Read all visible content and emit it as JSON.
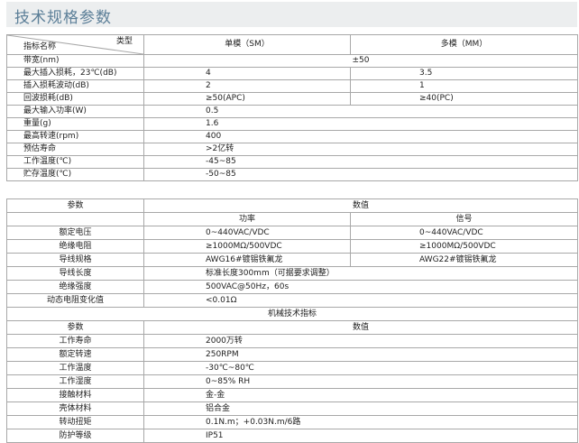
{
  "title": "技术规格参数",
  "optical": {
    "header": {
      "row_label": "指标名称",
      "col_label": "类型",
      "sm": "单模（SM）",
      "mm": "多模（MM）"
    },
    "bandwidth": {
      "label": "带宽(nm)",
      "value": "±50"
    },
    "rows_split": [
      {
        "label": "最大插入损耗，23℃(dB)",
        "sm": "4",
        "mm": "3.5"
      },
      {
        "label": "插入损耗波动(dB)",
        "sm": "2",
        "mm": "1"
      },
      {
        "label": "回波损耗(dB)",
        "sm": "≥50(APC)",
        "mm": "≥40(PC)"
      }
    ],
    "rows_single": [
      {
        "label": "最大输入功率(W)",
        "value": "0.5"
      },
      {
        "label": "重量(g)",
        "value": "1.6"
      },
      {
        "label": "最高转速(rpm)",
        "value": "400"
      },
      {
        "label": "预估寿命",
        "value": ">2亿转"
      },
      {
        "label": "工作温度(℃)",
        "value": "-45~85"
      },
      {
        "label": "贮存温度(℃)",
        "value": "-50~85"
      }
    ]
  },
  "electrical": {
    "header": {
      "param": "参数",
      "value": "数值",
      "power": "功率",
      "signal": "信号"
    },
    "rows_split": [
      {
        "label": "额定电压",
        "power": "0~440VAC/VDC",
        "signal": "0~440VAC/VDC"
      },
      {
        "label": "绝缘电阻",
        "power": "≥1000MΩ/500VDC",
        "signal": "≥1000MΩ/500VDC"
      },
      {
        "label": "导线规格",
        "power": "AWG16#镀锡铁氟龙",
        "signal": "AWG22#镀锡铁氟龙"
      }
    ],
    "rows_single": [
      {
        "label": "导线长度",
        "value": "标准长度300mm（可据要求调整）"
      },
      {
        "label": "绝缘强度",
        "value": "500VAC@50Hz，60s"
      },
      {
        "label": "动态电阻变化值",
        "value": "<0.01Ω"
      }
    ]
  },
  "mechanical": {
    "section": "机械技术指标",
    "header": {
      "param": "参数",
      "value": "数值"
    },
    "rows": [
      {
        "label": "工作寿命",
        "value": "2000万转"
      },
      {
        "label": "额定转速",
        "value": "250RPM"
      },
      {
        "label": "工作温度",
        "value": "-30℃~80℃"
      },
      {
        "label": "工作湿度",
        "value": "0~85% RH"
      },
      {
        "label": "接触材料",
        "value": "金-金"
      },
      {
        "label": "壳体材料",
        "value": "铝合金"
      },
      {
        "label": "转动扭矩",
        "value": "0.1N.m；+0.03N.m/6路"
      },
      {
        "label": "防护等级",
        "value": "IP51"
      }
    ]
  },
  "colors": {
    "title_text": "#5c7f98",
    "title_bg": "#eceeef",
    "border": "#a8a8a8"
  }
}
